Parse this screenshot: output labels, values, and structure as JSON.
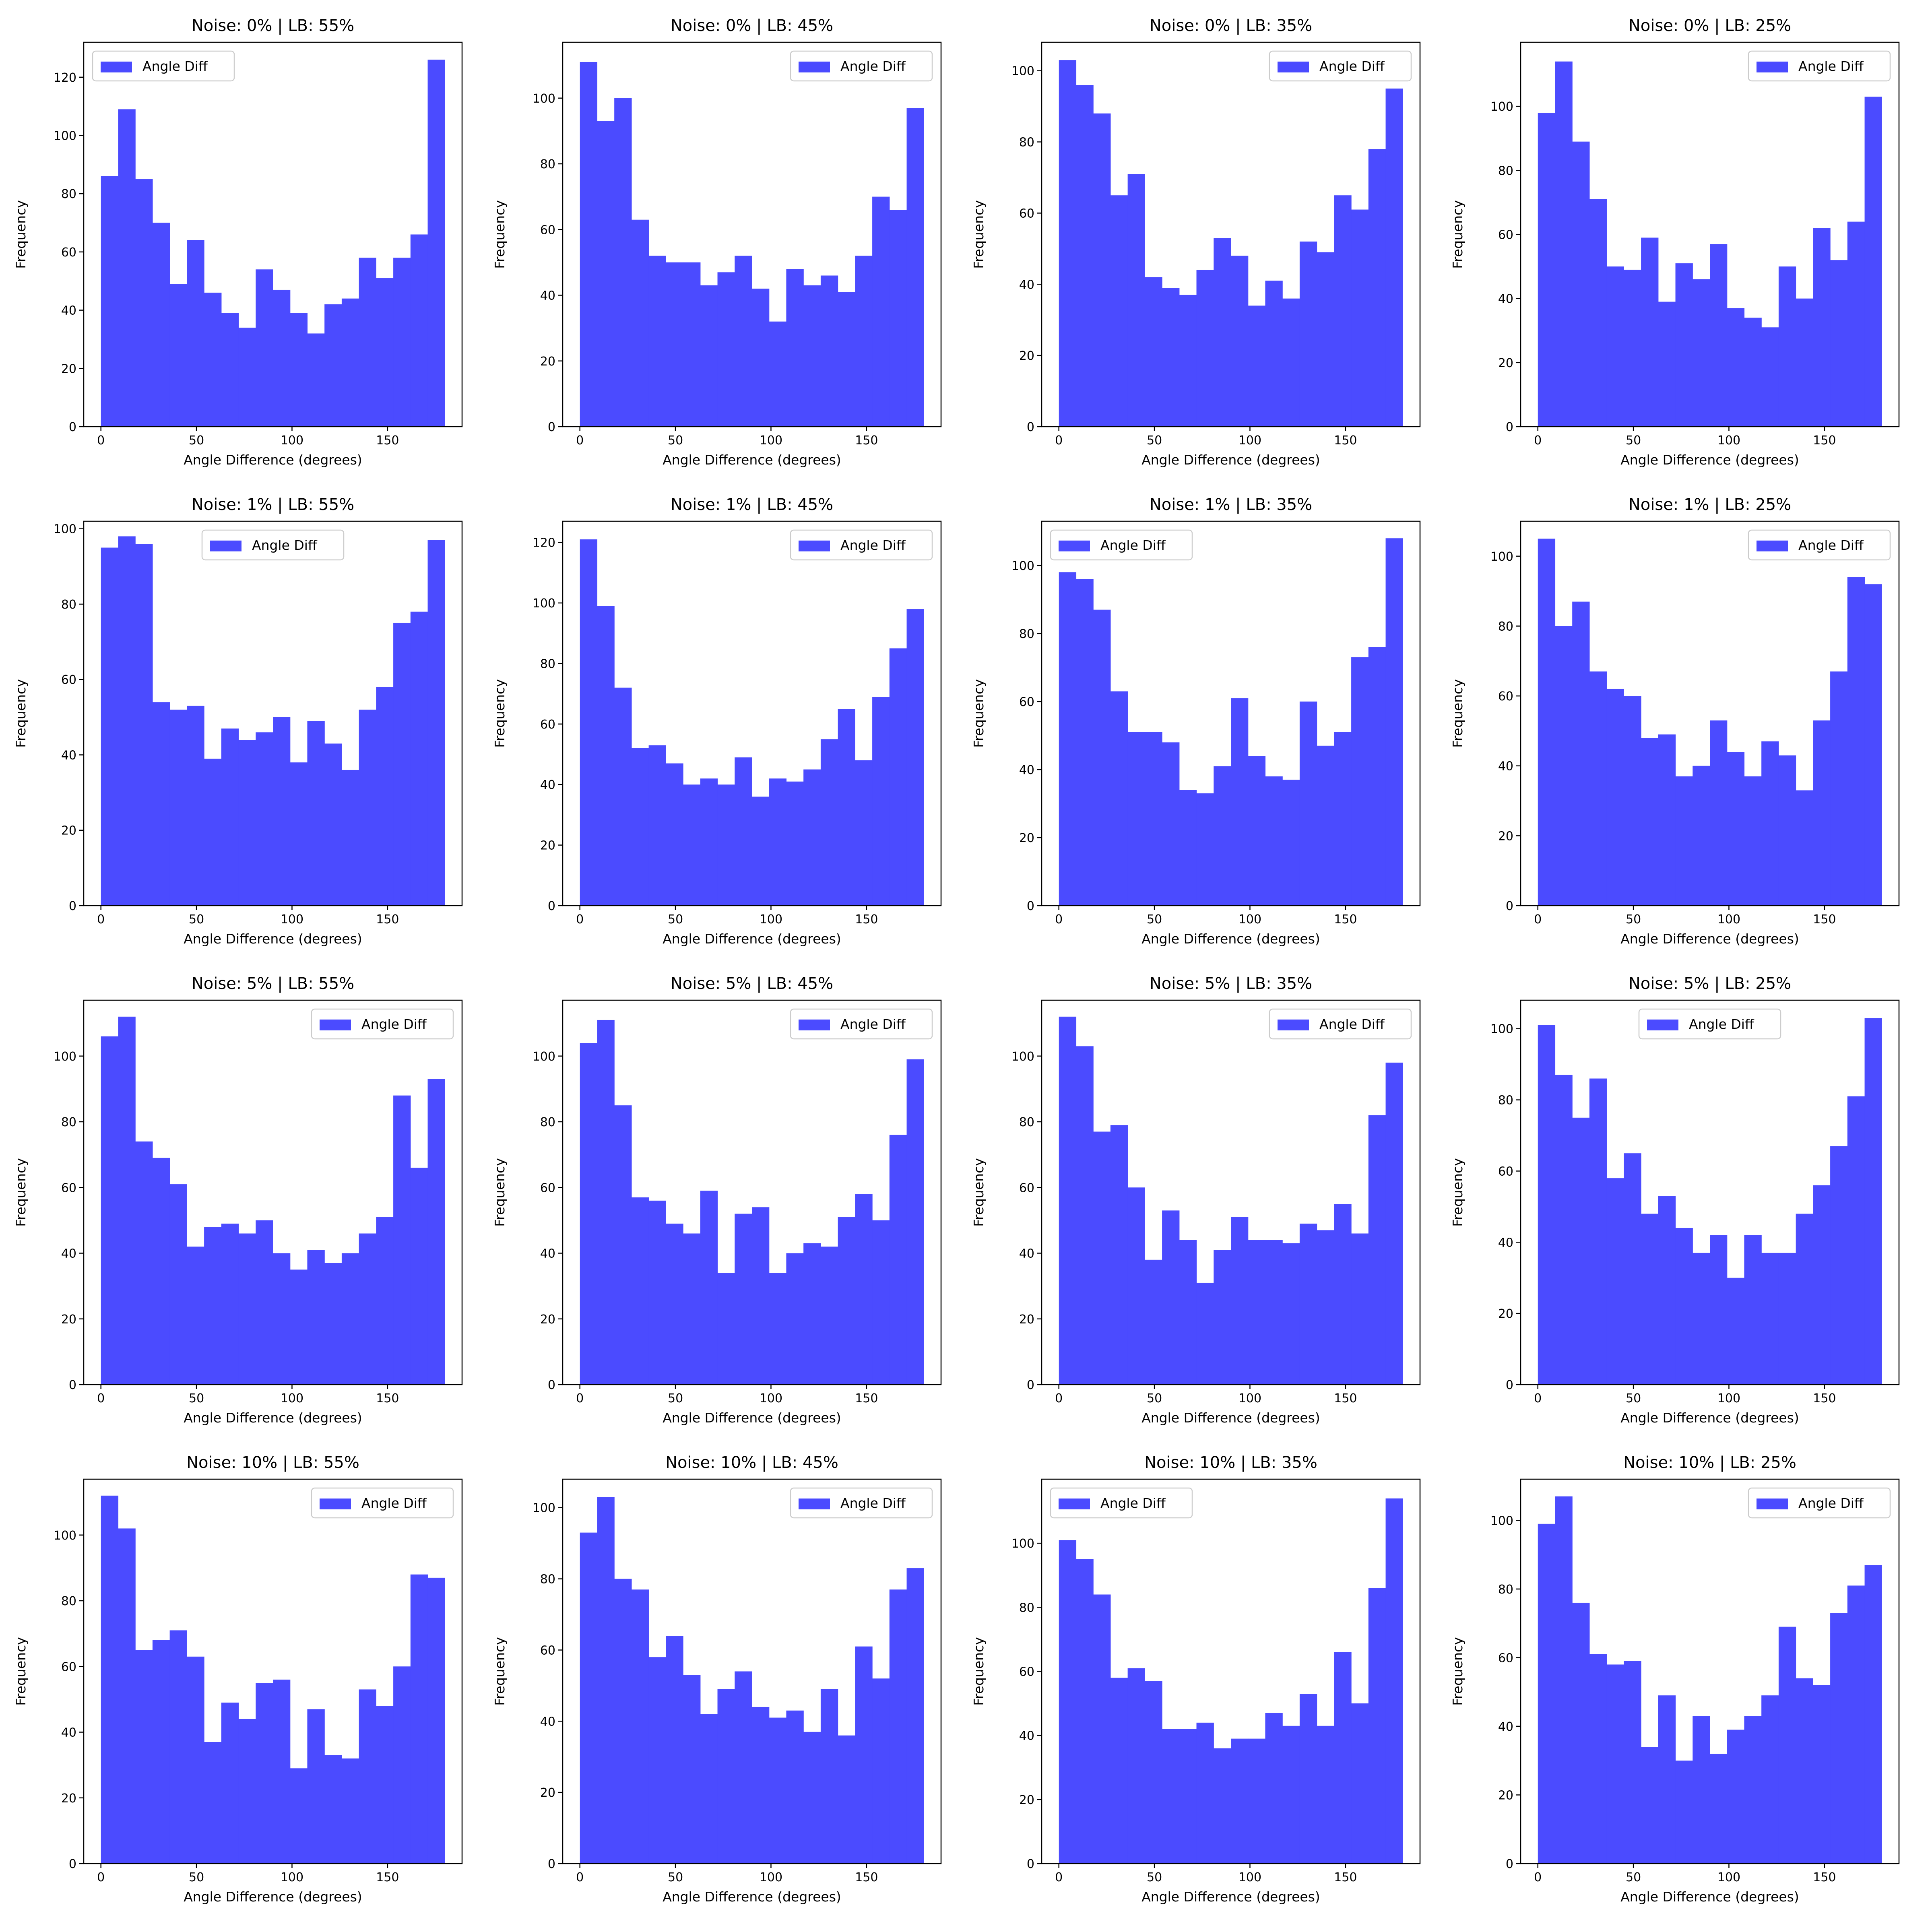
{
  "figure": {
    "rows": 4,
    "cols": 4
  },
  "style": {
    "bar_color": "#4b4bff",
    "axis_color": "#000000",
    "legend_border": "#cccccc",
    "background": "#ffffff"
  },
  "chart_data": [
    {
      "type": "bar",
      "title": "Noise: 0% | LB: 55%",
      "xlabel": "Angle Difference (degrees)",
      "ylabel": "Frequency",
      "legend": {
        "label": "Angle Diff",
        "position": "upper-left"
      },
      "xlim": [
        -9,
        189
      ],
      "ylim": [
        0,
        132
      ],
      "xticks": [
        0,
        50,
        100,
        150
      ],
      "yticks": [
        0,
        20,
        40,
        60,
        80,
        100,
        120
      ],
      "bin_edges": [
        0,
        180
      ],
      "series": [
        {
          "name": "Angle Diff",
          "values": [
            86,
            109,
            85,
            70,
            49,
            64,
            46,
            39,
            34,
            54,
            47,
            39,
            32,
            42,
            44,
            58,
            51,
            58,
            66,
            126
          ]
        }
      ]
    },
    {
      "type": "bar",
      "title": "Noise: 0% | LB: 45%",
      "xlabel": "Angle Difference (degrees)",
      "ylabel": "Frequency",
      "legend": {
        "label": "Angle Diff",
        "position": "upper-right"
      },
      "xlim": [
        -9,
        189
      ],
      "ylim": [
        0,
        117
      ],
      "xticks": [
        0,
        50,
        100,
        150
      ],
      "yticks": [
        0,
        20,
        40,
        60,
        80,
        100
      ],
      "bin_edges": [
        0,
        180
      ],
      "series": [
        {
          "name": "Angle Diff",
          "values": [
            111,
            93,
            100,
            63,
            52,
            50,
            50,
            43,
            47,
            52,
            42,
            32,
            48,
            43,
            46,
            41,
            52,
            70,
            66,
            97
          ]
        }
      ]
    },
    {
      "type": "bar",
      "title": "Noise: 0% | LB: 35%",
      "xlabel": "Angle Difference (degrees)",
      "ylabel": "Frequency",
      "legend": {
        "label": "Angle Diff",
        "position": "upper-right"
      },
      "xlim": [
        -9,
        189
      ],
      "ylim": [
        0,
        108
      ],
      "xticks": [
        0,
        50,
        100,
        150
      ],
      "yticks": [
        0,
        20,
        40,
        60,
        80,
        100
      ],
      "bin_edges": [
        0,
        180
      ],
      "series": [
        {
          "name": "Angle Diff",
          "values": [
            103,
            96,
            88,
            65,
            71,
            42,
            39,
            37,
            44,
            53,
            48,
            34,
            41,
            36,
            52,
            49,
            65,
            61,
            78,
            95
          ]
        }
      ]
    },
    {
      "type": "bar",
      "title": "Noise: 0% | LB: 25%",
      "xlabel": "Angle Difference (degrees)",
      "ylabel": "Frequency",
      "legend": {
        "label": "Angle Diff",
        "position": "upper-right"
      },
      "xlim": [
        -9,
        189
      ],
      "ylim": [
        0,
        120
      ],
      "xticks": [
        0,
        50,
        100,
        150
      ],
      "yticks": [
        0,
        20,
        40,
        60,
        80,
        100
      ],
      "bin_edges": [
        0,
        180
      ],
      "series": [
        {
          "name": "Angle Diff",
          "values": [
            98,
            114,
            89,
            71,
            50,
            49,
            59,
            39,
            51,
            46,
            57,
            37,
            34,
            31,
            50,
            40,
            62,
            52,
            64,
            103
          ]
        }
      ]
    },
    {
      "type": "bar",
      "title": "Noise: 1% | LB: 55%",
      "xlabel": "Angle Difference (degrees)",
      "ylabel": "Frequency",
      "legend": {
        "label": "Angle Diff",
        "position": "upper-center"
      },
      "xlim": [
        -9,
        189
      ],
      "ylim": [
        0,
        102
      ],
      "xticks": [
        0,
        50,
        100,
        150
      ],
      "yticks": [
        0,
        20,
        40,
        60,
        80,
        100
      ],
      "bin_edges": [
        0,
        180
      ],
      "series": [
        {
          "name": "Angle Diff",
          "values": [
            95,
            98,
            96,
            54,
            52,
            53,
            39,
            47,
            44,
            46,
            50,
            38,
            49,
            43,
            36,
            52,
            58,
            75,
            78,
            97
          ]
        }
      ]
    },
    {
      "type": "bar",
      "title": "Noise: 1% | LB: 45%",
      "xlabel": "Angle Difference (degrees)",
      "ylabel": "Frequency",
      "legend": {
        "label": "Angle Diff",
        "position": "upper-right"
      },
      "xlim": [
        -9,
        189
      ],
      "ylim": [
        0,
        127
      ],
      "xticks": [
        0,
        50,
        100,
        150
      ],
      "yticks": [
        0,
        20,
        40,
        60,
        80,
        100,
        120
      ],
      "bin_edges": [
        0,
        180
      ],
      "series": [
        {
          "name": "Angle Diff",
          "values": [
            121,
            99,
            72,
            52,
            53,
            47,
            40,
            42,
            40,
            49,
            36,
            42,
            41,
            45,
            55,
            65,
            48,
            69,
            85,
            98
          ]
        }
      ]
    },
    {
      "type": "bar",
      "title": "Noise: 1% | LB: 35%",
      "xlabel": "Angle Difference (degrees)",
      "ylabel": "Frequency",
      "legend": {
        "label": "Angle Diff",
        "position": "upper-left"
      },
      "xlim": [
        -9,
        189
      ],
      "ylim": [
        0,
        113
      ],
      "xticks": [
        0,
        50,
        100,
        150
      ],
      "yticks": [
        0,
        20,
        40,
        60,
        80,
        100
      ],
      "bin_edges": [
        0,
        180
      ],
      "series": [
        {
          "name": "Angle Diff",
          "values": [
            98,
            96,
            87,
            63,
            51,
            51,
            48,
            34,
            33,
            41,
            61,
            44,
            38,
            37,
            60,
            47,
            51,
            73,
            76,
            108
          ]
        }
      ]
    },
    {
      "type": "bar",
      "title": "Noise: 1% | LB: 25%",
      "xlabel": "Angle Difference (degrees)",
      "ylabel": "Frequency",
      "legend": {
        "label": "Angle Diff",
        "position": "upper-right"
      },
      "xlim": [
        -9,
        189
      ],
      "ylim": [
        0,
        110
      ],
      "xticks": [
        0,
        50,
        100,
        150
      ],
      "yticks": [
        0,
        20,
        40,
        60,
        80,
        100
      ],
      "bin_edges": [
        0,
        180
      ],
      "series": [
        {
          "name": "Angle Diff",
          "values": [
            105,
            80,
            87,
            67,
            62,
            60,
            48,
            49,
            37,
            40,
            53,
            44,
            37,
            47,
            43,
            33,
            53,
            67,
            94,
            92
          ]
        }
      ]
    },
    {
      "type": "bar",
      "title": "Noise: 5% | LB: 55%",
      "xlabel": "Angle Difference (degrees)",
      "ylabel": "Frequency",
      "legend": {
        "label": "Angle Diff",
        "position": "upper-right"
      },
      "xlim": [
        -9,
        189
      ],
      "ylim": [
        0,
        117
      ],
      "xticks": [
        0,
        50,
        100,
        150
      ],
      "yticks": [
        0,
        20,
        40,
        60,
        80,
        100
      ],
      "bin_edges": [
        0,
        180
      ],
      "series": [
        {
          "name": "Angle Diff",
          "values": [
            106,
            112,
            74,
            69,
            61,
            42,
            48,
            49,
            46,
            50,
            40,
            35,
            41,
            37,
            40,
            46,
            51,
            88,
            66,
            93
          ]
        }
      ]
    },
    {
      "type": "bar",
      "title": "Noise: 5% | LB: 45%",
      "xlabel": "Angle Difference (degrees)",
      "ylabel": "Frequency",
      "legend": {
        "label": "Angle Diff",
        "position": "upper-right"
      },
      "xlim": [
        -9,
        189
      ],
      "ylim": [
        0,
        117
      ],
      "xticks": [
        0,
        50,
        100,
        150
      ],
      "yticks": [
        0,
        20,
        40,
        60,
        80,
        100
      ],
      "bin_edges": [
        0,
        180
      ],
      "series": [
        {
          "name": "Angle Diff",
          "values": [
            104,
            111,
            85,
            57,
            56,
            49,
            46,
            59,
            34,
            52,
            54,
            34,
            40,
            43,
            42,
            51,
            58,
            50,
            76,
            99
          ]
        }
      ]
    },
    {
      "type": "bar",
      "title": "Noise: 5% | LB: 35%",
      "xlabel": "Angle Difference (degrees)",
      "ylabel": "Frequency",
      "legend": {
        "label": "Angle Diff",
        "position": "upper-right"
      },
      "xlim": [
        -9,
        189
      ],
      "ylim": [
        0,
        117
      ],
      "xticks": [
        0,
        50,
        100,
        150
      ],
      "yticks": [
        0,
        20,
        40,
        60,
        80,
        100
      ],
      "bin_edges": [
        0,
        180
      ],
      "series": [
        {
          "name": "Angle Diff",
          "values": [
            112,
            103,
            77,
            79,
            60,
            38,
            53,
            44,
            31,
            41,
            51,
            44,
            44,
            43,
            49,
            47,
            55,
            46,
            82,
            98
          ]
        }
      ]
    },
    {
      "type": "bar",
      "title": "Noise: 5% | LB: 25%",
      "xlabel": "Angle Difference (degrees)",
      "ylabel": "Frequency",
      "legend": {
        "label": "Angle Diff",
        "position": "upper-center"
      },
      "xlim": [
        -9,
        189
      ],
      "ylim": [
        0,
        108
      ],
      "xticks": [
        0,
        50,
        100,
        150
      ],
      "yticks": [
        0,
        20,
        40,
        60,
        80,
        100
      ],
      "bin_edges": [
        0,
        180
      ],
      "series": [
        {
          "name": "Angle Diff",
          "values": [
            101,
            87,
            75,
            86,
            58,
            65,
            48,
            53,
            44,
            37,
            42,
            30,
            42,
            37,
            37,
            48,
            56,
            67,
            81,
            103
          ]
        }
      ]
    },
    {
      "type": "bar",
      "title": "Noise: 10% | LB: 55%",
      "xlabel": "Angle Difference (degrees)",
      "ylabel": "Frequency",
      "legend": {
        "label": "Angle Diff",
        "position": "upper-right"
      },
      "xlim": [
        -9,
        189
      ],
      "ylim": [
        0,
        117
      ],
      "xticks": [
        0,
        50,
        100,
        150
      ],
      "yticks": [
        0,
        20,
        40,
        60,
        80,
        100
      ],
      "bin_edges": [
        0,
        180
      ],
      "series": [
        {
          "name": "Angle Diff",
          "values": [
            112,
            102,
            65,
            68,
            71,
            63,
            37,
            49,
            44,
            55,
            56,
            29,
            47,
            33,
            32,
            53,
            48,
            60,
            88,
            87
          ]
        }
      ]
    },
    {
      "type": "bar",
      "title": "Noise: 10% | LB: 45%",
      "xlabel": "Angle Difference (degrees)",
      "ylabel": "Frequency",
      "legend": {
        "label": "Angle Diff",
        "position": "upper-right"
      },
      "xlim": [
        -9,
        189
      ],
      "ylim": [
        0,
        108
      ],
      "xticks": [
        0,
        50,
        100,
        150
      ],
      "yticks": [
        0,
        20,
        40,
        60,
        80,
        100
      ],
      "bin_edges": [
        0,
        180
      ],
      "series": [
        {
          "name": "Angle Diff",
          "values": [
            93,
            103,
            80,
            77,
            58,
            64,
            53,
            42,
            49,
            54,
            44,
            41,
            43,
            37,
            49,
            36,
            61,
            52,
            77,
            83
          ]
        }
      ]
    },
    {
      "type": "bar",
      "title": "Noise: 10% | LB: 35%",
      "xlabel": "Angle Difference (degrees)",
      "ylabel": "Frequency",
      "legend": {
        "label": "Angle Diff",
        "position": "upper-left"
      },
      "xlim": [
        -9,
        189
      ],
      "ylim": [
        0,
        120
      ],
      "xticks": [
        0,
        50,
        100,
        150
      ],
      "yticks": [
        0,
        20,
        40,
        60,
        80,
        100
      ],
      "bin_edges": [
        0,
        180
      ],
      "series": [
        {
          "name": "Angle Diff",
          "values": [
            101,
            95,
            84,
            58,
            61,
            57,
            42,
            42,
            44,
            36,
            39,
            39,
            47,
            43,
            53,
            43,
            66,
            50,
            86,
            114
          ]
        }
      ]
    },
    {
      "type": "bar",
      "title": "Noise: 10% | LB: 25%",
      "xlabel": "Angle Difference (degrees)",
      "ylabel": "Frequency",
      "legend": {
        "label": "Angle Diff",
        "position": "upper-right"
      },
      "xlim": [
        -9,
        189
      ],
      "ylim": [
        0,
        112
      ],
      "xticks": [
        0,
        50,
        100,
        150
      ],
      "yticks": [
        0,
        20,
        40,
        60,
        80,
        100
      ],
      "bin_edges": [
        0,
        180
      ],
      "series": [
        {
          "name": "Angle Diff",
          "values": [
            99,
            107,
            76,
            61,
            58,
            59,
            34,
            49,
            30,
            43,
            32,
            39,
            43,
            49,
            69,
            54,
            52,
            73,
            81,
            87
          ]
        }
      ]
    }
  ]
}
